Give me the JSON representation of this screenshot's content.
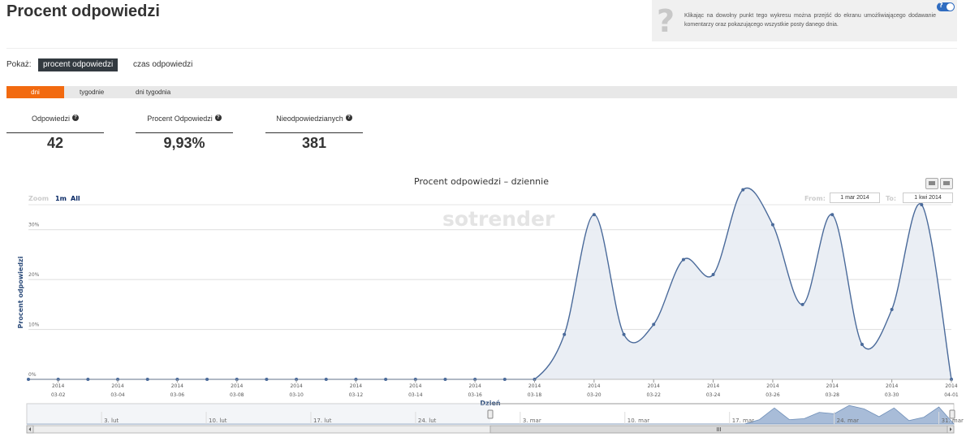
{
  "page": {
    "title": "Procent odpowiedzi",
    "help_text": "Klikając na dowolny punkt tego wykresu można przejść do ekranu umożliwiającego dodawanie komentarzy oraz pokazującego wszystkie posty danego dnia.",
    "help_toggle": "?"
  },
  "show": {
    "label": "Pokaż:",
    "options": [
      "procent odpowiedzi",
      "czas odpowiedzi"
    ],
    "selected": "procent odpowiedzi"
  },
  "tabs": [
    "dni",
    "tygodnie",
    "dni tygodnia"
  ],
  "stats": [
    {
      "label": "Odpowiedzi",
      "value": "42"
    },
    {
      "label": "Procent Odpowiedzi",
      "value": "9,93%"
    },
    {
      "label": "Nieodpowiedzianych",
      "value": "381"
    }
  ],
  "colors": {
    "accent": "#f26a10",
    "series": "#4a6a9a",
    "dark_button": "#333a40"
  },
  "chart_toolbar": {
    "zoom_label": "Zoom",
    "zoom_options": [
      "1m",
      "All"
    ],
    "from_label": "From:",
    "from_value": "1 mar 2014",
    "to_label": "To:",
    "to_value": "1 kwi 2014",
    "icons": [
      "print-icon",
      "download-icon"
    ]
  },
  "chart_data": {
    "type": "area",
    "title": "Procent odpowiedzi – dziennie",
    "watermark": "sotrender",
    "ylabel": "Procent odpowiedzi",
    "xlabel": "Dzień",
    "ylim": [
      0,
      35
    ],
    "yticks": [
      "0%",
      "10%",
      "20%",
      "30%"
    ],
    "ytick_values": [
      0,
      10,
      20,
      30
    ],
    "x": [
      "2014-03-01",
      "2014-03-02",
      "2014-03-03",
      "2014-03-04",
      "2014-03-05",
      "2014-03-06",
      "2014-03-07",
      "2014-03-08",
      "2014-03-09",
      "2014-03-10",
      "2014-03-11",
      "2014-03-12",
      "2014-03-13",
      "2014-03-14",
      "2014-03-15",
      "2014-03-16",
      "2014-03-17",
      "2014-03-18",
      "2014-03-19",
      "2014-03-20",
      "2014-03-21",
      "2014-03-22",
      "2014-03-23",
      "2014-03-24",
      "2014-03-25",
      "2014-03-26",
      "2014-03-27",
      "2014-03-28",
      "2014-03-29",
      "2014-03-30",
      "2014-03-31",
      "2014-04-01"
    ],
    "series": [
      {
        "values": [
          0,
          0,
          0,
          0,
          0,
          0,
          0,
          0,
          0,
          0,
          0,
          0,
          0,
          0,
          0,
          0,
          0,
          0,
          9,
          33,
          9,
          11,
          24,
          21,
          38,
          31,
          15,
          33,
          7,
          14,
          35,
          0
        ]
      }
    ],
    "xtick_labels": [
      {
        "date": "2014-03-02",
        "year": "2014",
        "md": "03-02"
      },
      {
        "date": "2014-03-04",
        "year": "2014",
        "md": "03-04"
      },
      {
        "date": "2014-03-06",
        "year": "2014",
        "md": "03-06"
      },
      {
        "date": "2014-03-08",
        "year": "2014",
        "md": "03-08"
      },
      {
        "date": "2014-03-10",
        "year": "2014",
        "md": "03-10"
      },
      {
        "date": "2014-03-12",
        "year": "2014",
        "md": "03-12"
      },
      {
        "date": "2014-03-14",
        "year": "2014",
        "md": "03-14"
      },
      {
        "date": "2014-03-16",
        "year": "2014",
        "md": "03-16"
      },
      {
        "date": "2014-03-18",
        "year": "2014",
        "md": "03-18"
      },
      {
        "date": "2014-03-20",
        "year": "2014",
        "md": "03-20"
      },
      {
        "date": "2014-03-22",
        "year": "2014",
        "md": "03-22"
      },
      {
        "date": "2014-03-24",
        "year": "2014",
        "md": "03-24"
      },
      {
        "date": "2014-03-26",
        "year": "2014",
        "md": "03-26"
      },
      {
        "date": "2014-03-28",
        "year": "2014",
        "md": "03-28"
      },
      {
        "date": "2014-03-30",
        "year": "2014",
        "md": "03-30"
      },
      {
        "date": "2014-04-01",
        "year": "2014",
        "md": "04-01"
      }
    ],
    "grid": true,
    "legend": "none",
    "navigator": {
      "labels": [
        "3. lut",
        "10. lut",
        "17. lut",
        "24. lut",
        "3. mar",
        "10. mar",
        "17. mar",
        "24. mar",
        "31. mar"
      ]
    }
  }
}
